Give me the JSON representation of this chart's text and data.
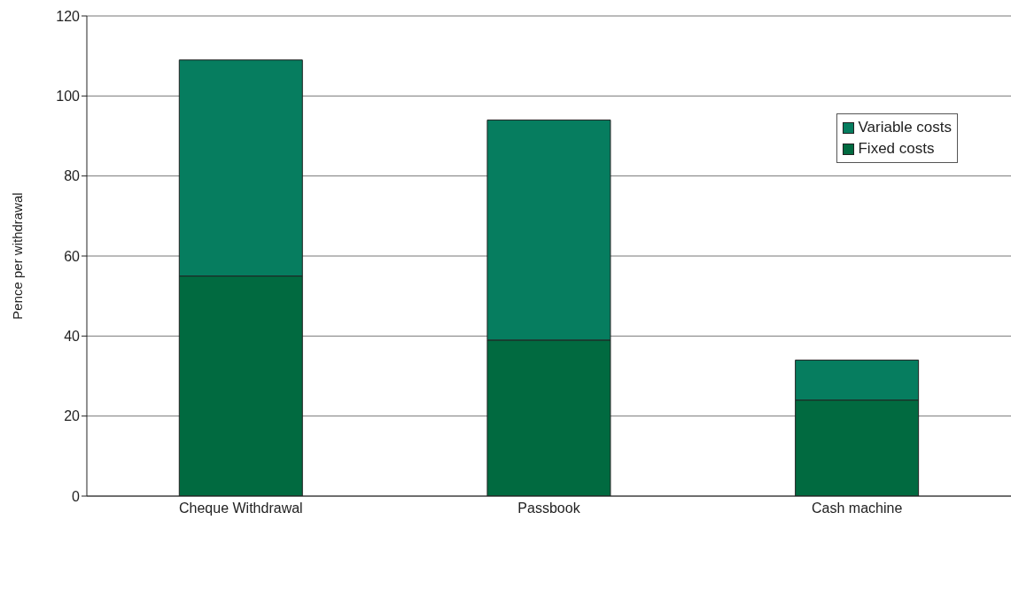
{
  "chart_data": {
    "type": "bar",
    "stacked": true,
    "ylabel": "Pence per withdrawal",
    "categories": [
      "Cheque Withdrawal",
      "Passbook",
      "Cash machine"
    ],
    "series": [
      {
        "name": "Fixed costs",
        "color": "#016a40",
        "values": [
          55,
          39,
          24
        ]
      },
      {
        "name": "Variable costs",
        "color": "#067d5f",
        "values": [
          54,
          55,
          10
        ]
      }
    ],
    "ylim": [
      0,
      120
    ],
    "yticks": [
      0,
      20,
      40,
      60,
      80,
      100,
      120
    ],
    "grid": "y",
    "legend": "top right"
  }
}
